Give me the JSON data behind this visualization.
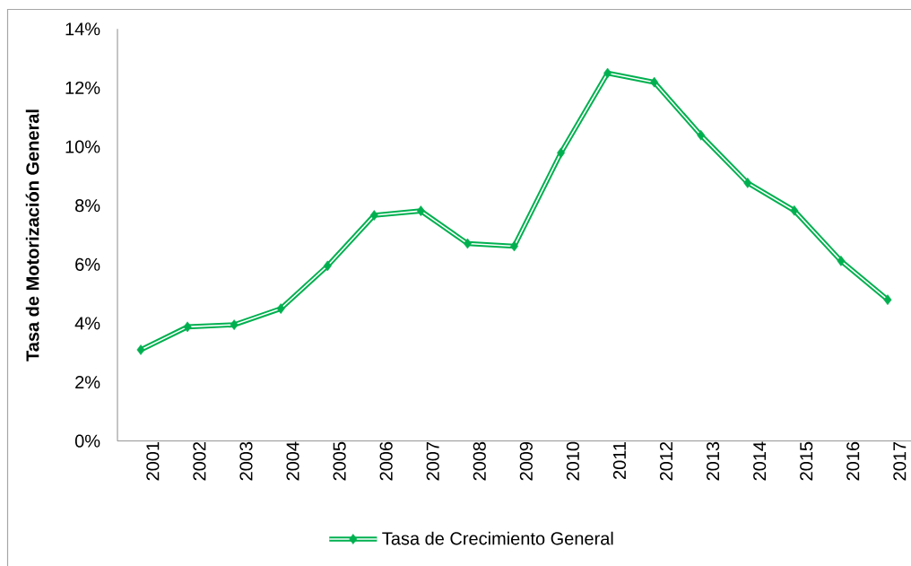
{
  "chart_data": {
    "type": "line",
    "ylabel": "Tasa de Motorización General",
    "categories": [
      "2001",
      "2002",
      "2003",
      "2004",
      "2005",
      "2006",
      "2007",
      "2008",
      "2009",
      "2010",
      "2011",
      "2012",
      "2013",
      "2014",
      "2015",
      "2016",
      "2017"
    ],
    "series": [
      {
        "name": "Tasa de Crecimiento General",
        "color": "#00b050",
        "values": [
          3.1,
          3.88,
          3.95,
          4.5,
          5.95,
          7.67,
          7.82,
          6.71,
          6.62,
          9.79,
          12.5,
          12.19,
          10.39,
          8.77,
          7.83,
          6.12,
          4.8
        ]
      }
    ],
    "ylim": [
      0,
      14
    ],
    "yticks": [
      {
        "value": 0,
        "label": "0%"
      },
      {
        "value": 2,
        "label": "2%"
      },
      {
        "value": 4,
        "label": "4%"
      },
      {
        "value": 6,
        "label": "6%"
      },
      {
        "value": 8,
        "label": "8%"
      },
      {
        "value": 10,
        "label": "10%"
      },
      {
        "value": 12,
        "label": "12%"
      },
      {
        "value": 14,
        "label": "14%"
      }
    ],
    "legend": "bottom",
    "marker": "diamond",
    "line_style": "solid"
  }
}
